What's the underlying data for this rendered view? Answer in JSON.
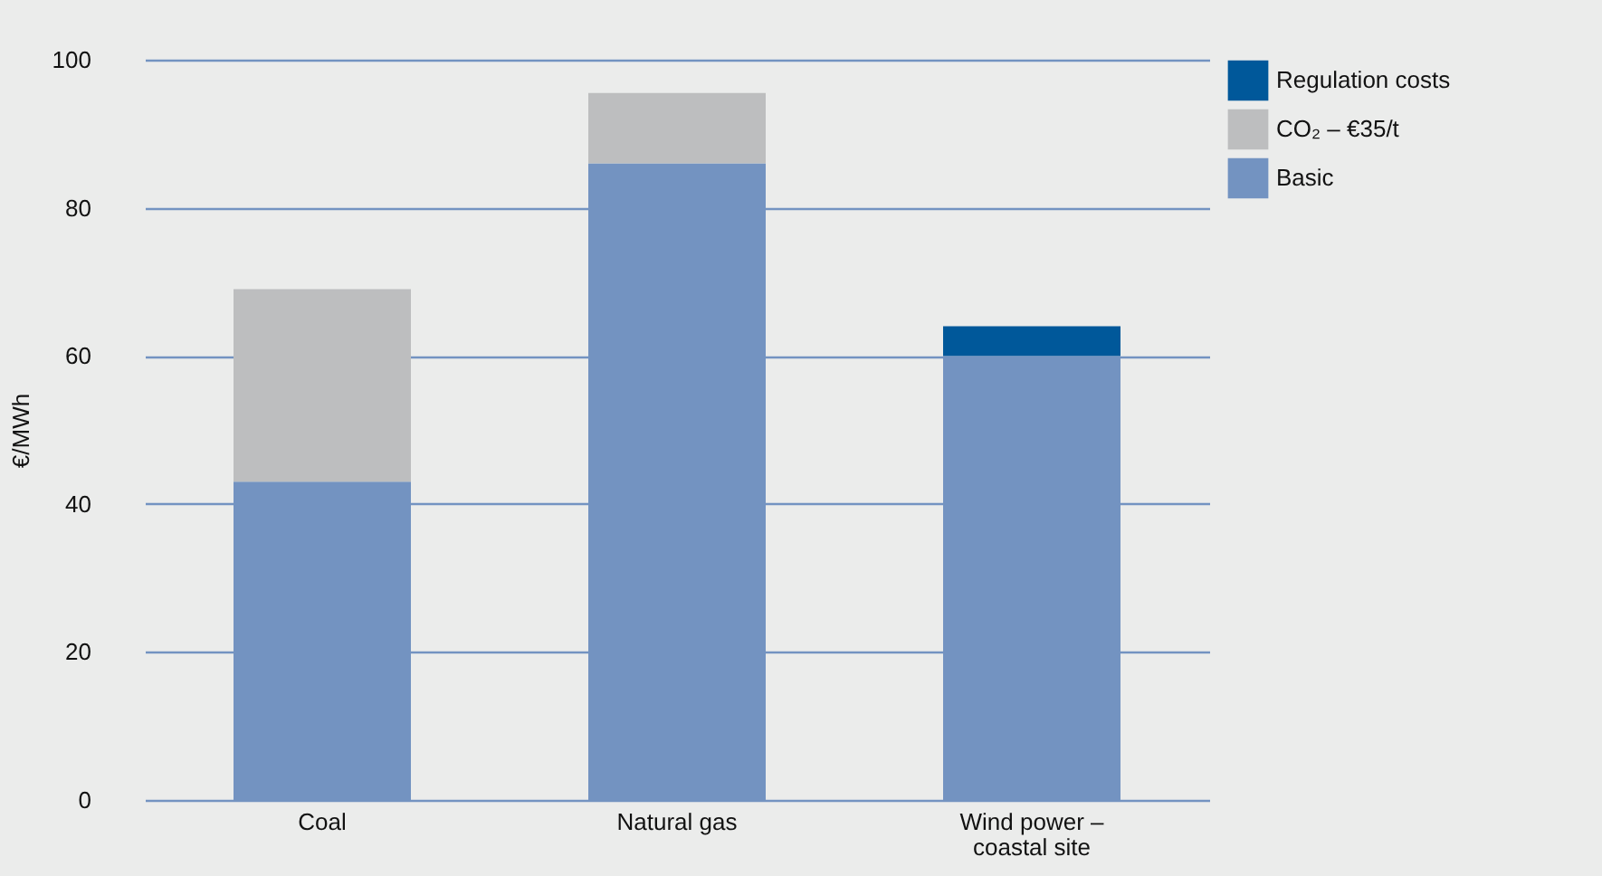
{
  "chart_data": {
    "type": "bar",
    "ylabel": "€/MWh",
    "categories": [
      "Coal",
      "Natural gas",
      "Wind power – coastal site"
    ],
    "stacked": true,
    "series": [
      {
        "name": "Basic",
        "color": "#7393c1",
        "values": [
          43,
          86,
          60
        ]
      },
      {
        "name": "CO₂ – €35/t",
        "color": "#bdbebf",
        "values": [
          26,
          9.5,
          null
        ]
      },
      {
        "name": "Regulation costs",
        "color": "#00589a",
        "values": [
          null,
          null,
          4
        ]
      }
    ],
    "ylim": [
      0,
      100
    ],
    "yticks": [
      0,
      20,
      40,
      60,
      80,
      100
    ],
    "grid": "y",
    "legend": "top right"
  }
}
